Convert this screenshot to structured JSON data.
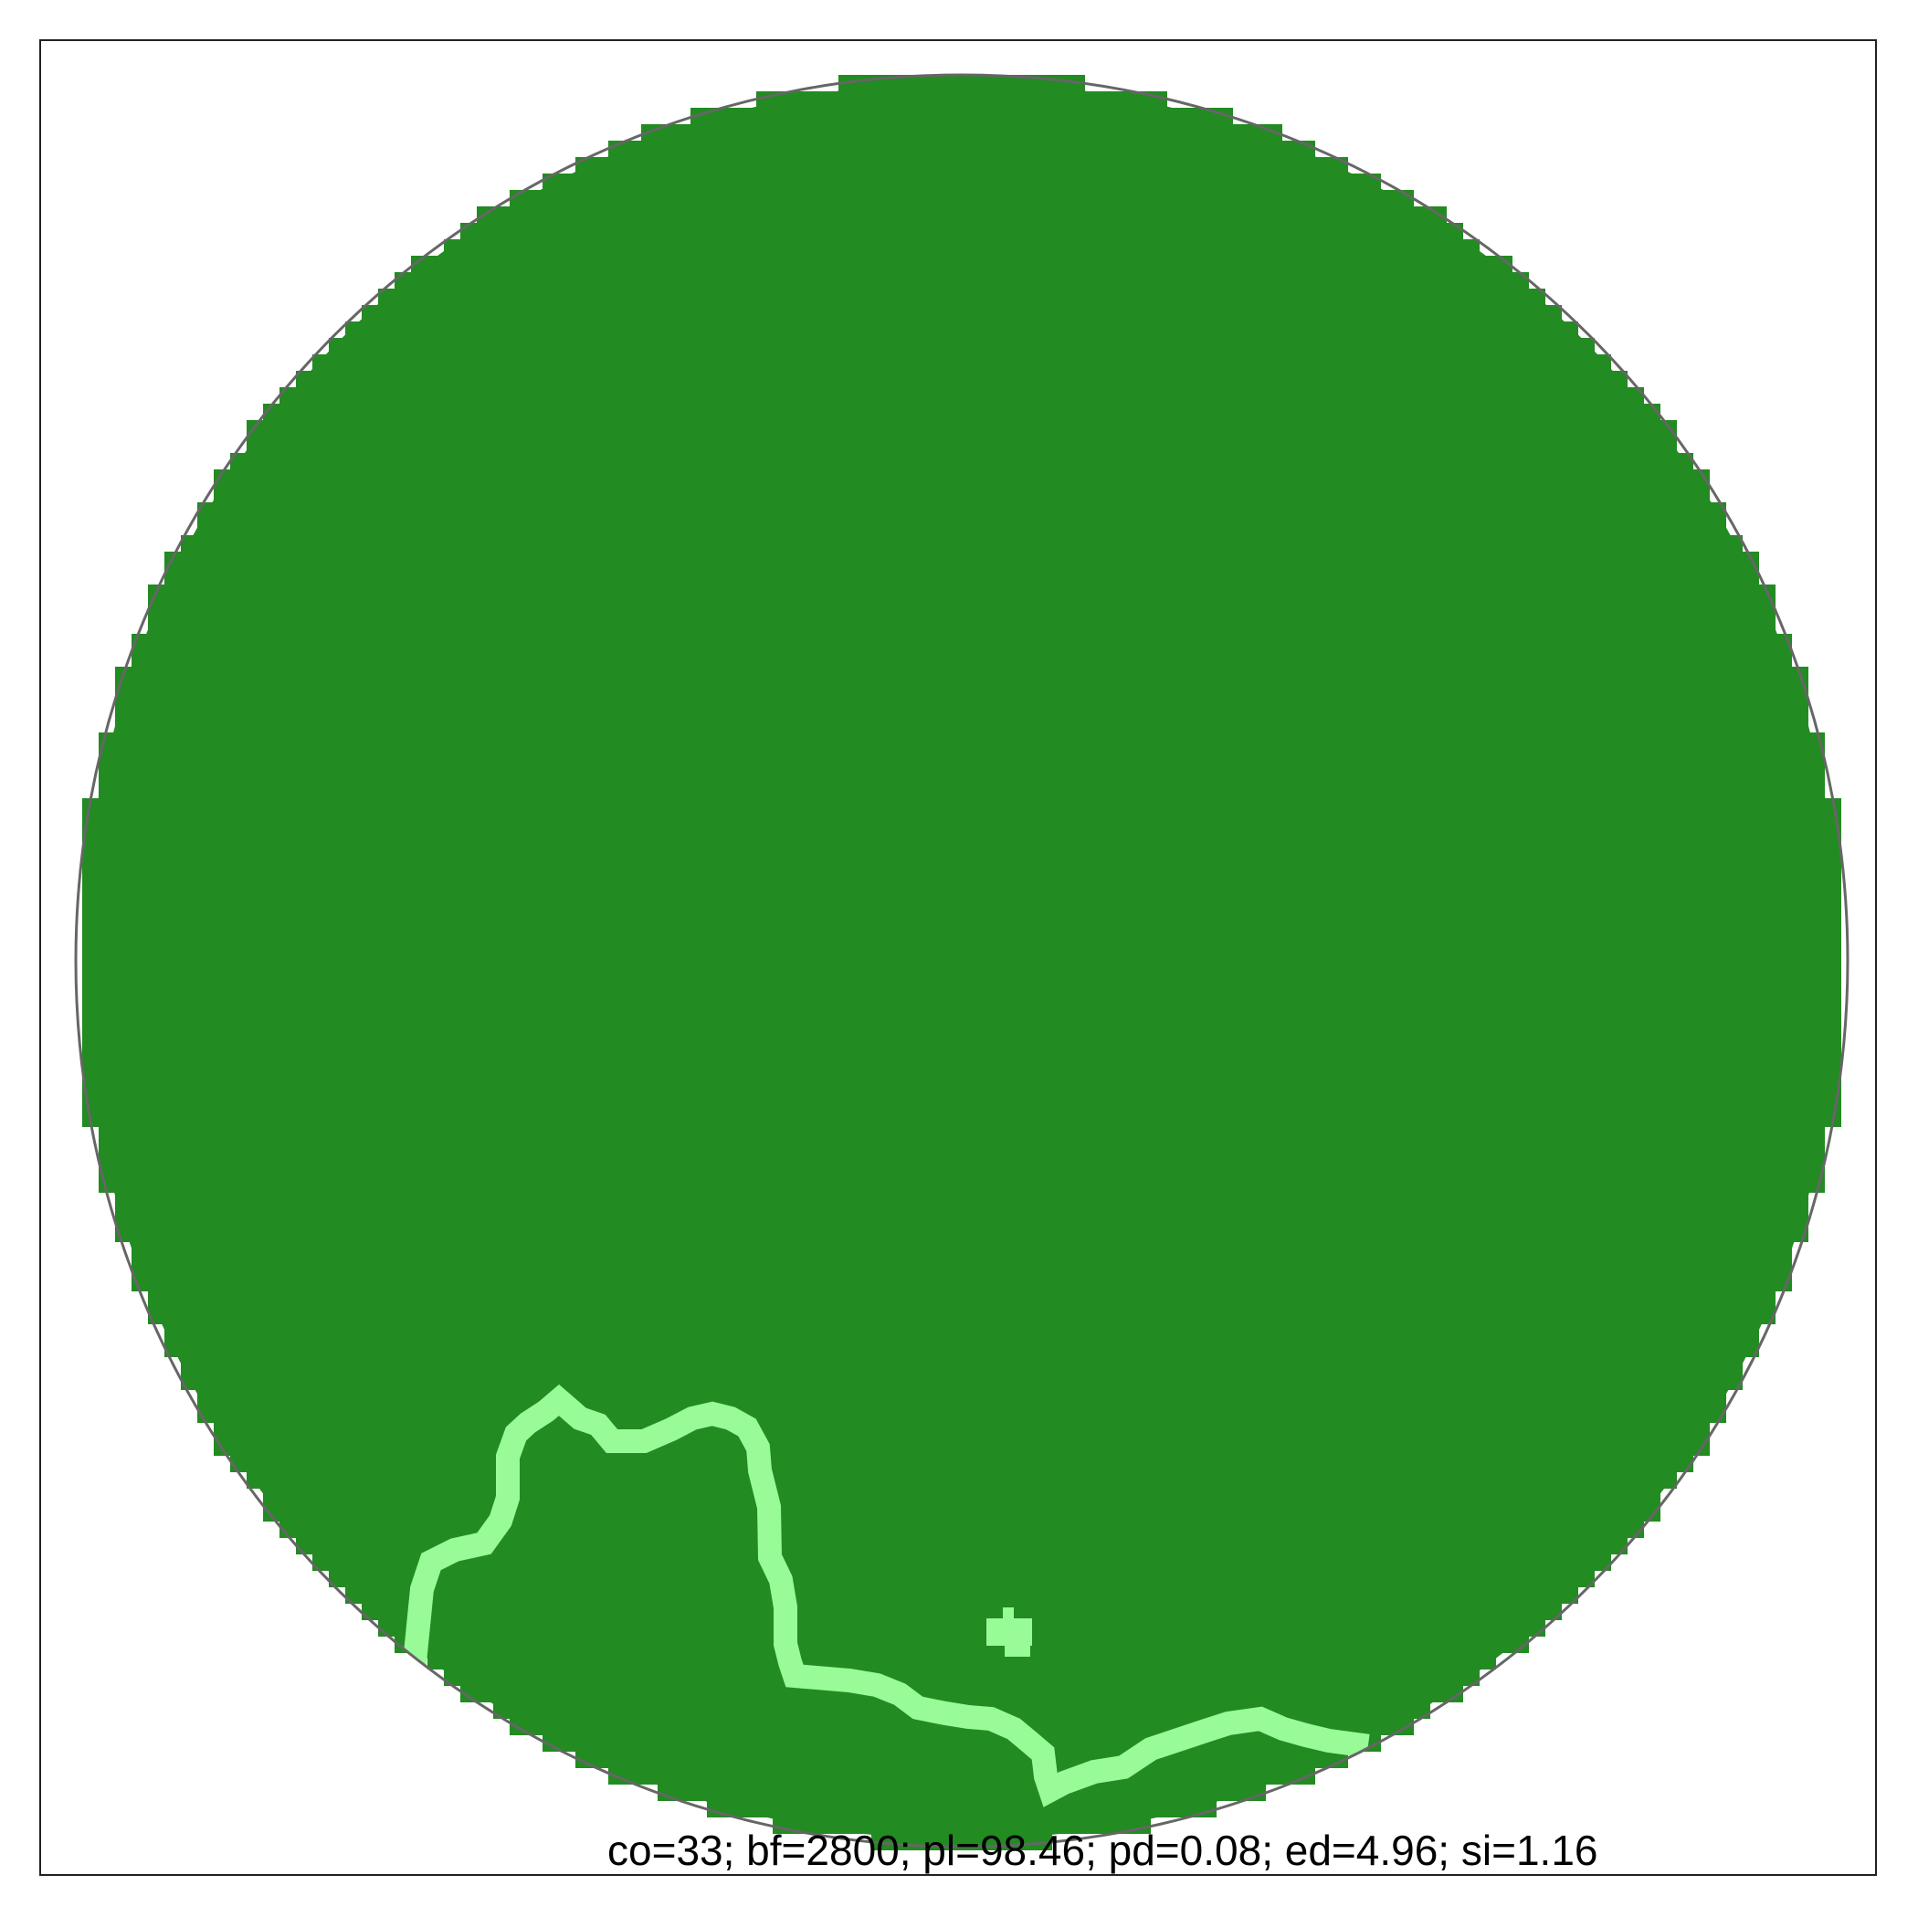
{
  "stats_label": "co=33; bf=2800; pl=98.46; pd=0.08; ed=4.96; si=1.16",
  "colors": {
    "habitat": "#228b22",
    "edge": "#98fb98",
    "outline": "#666666",
    "frame": "#222222",
    "background": "#ffffff"
  },
  "legend": []
}
